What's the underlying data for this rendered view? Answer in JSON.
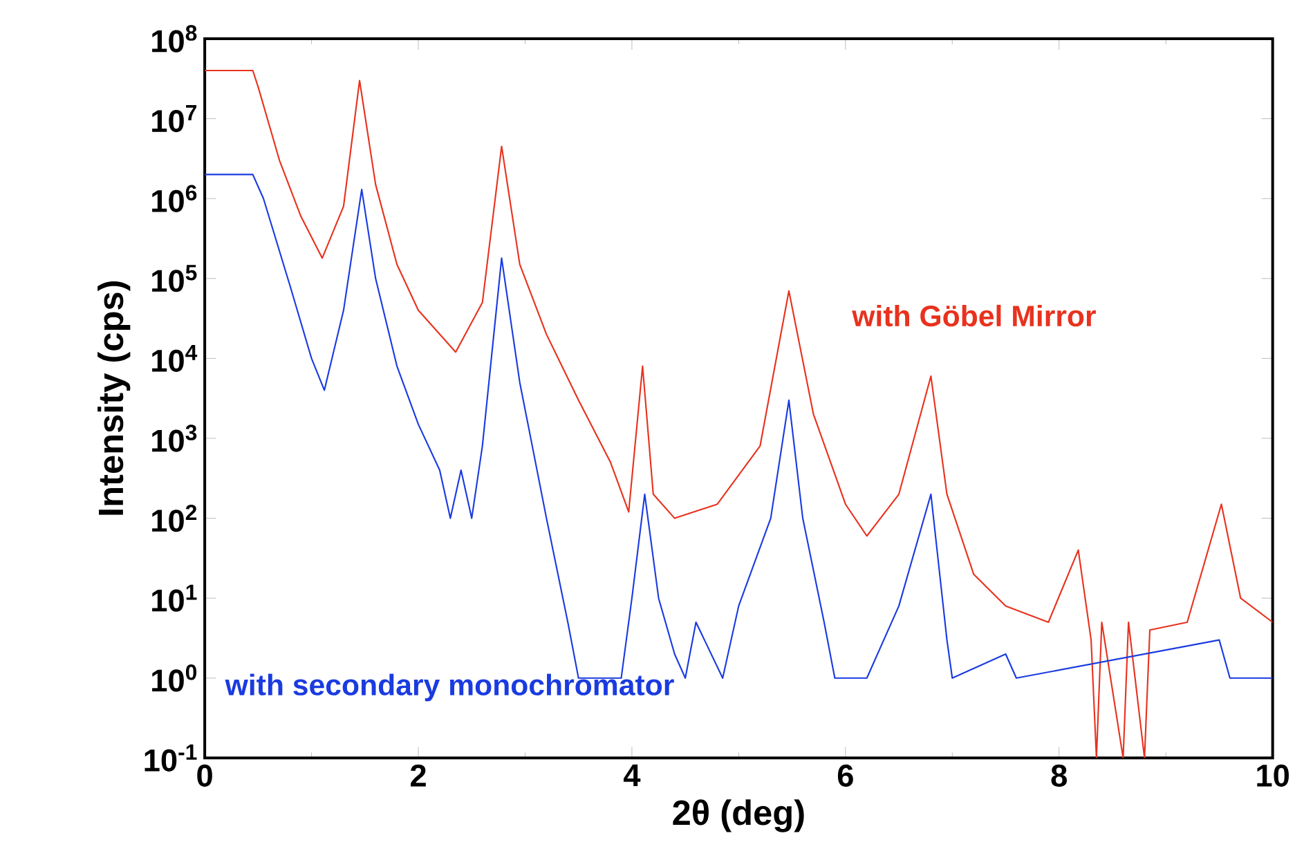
{
  "chart_data": {
    "type": "line",
    "xlabel": "2θ  (deg)",
    "ylabel": "Intensity (cps)",
    "log": "y",
    "grid": false,
    "legend": false,
    "marker": "none",
    "line_style": "solid",
    "xlim": [
      0,
      10
    ],
    "xticks": [
      0,
      2,
      4,
      6,
      8,
      10
    ],
    "ylim": [
      0.1,
      100000000
    ],
    "yticks": [
      {
        "value": 0.1,
        "label": "10$^{-1}$"
      },
      {
        "value": 1,
        "label": "10$^{0}$"
      },
      {
        "value": 10,
        "label": "10$^{1}$"
      },
      {
        "value": 100,
        "label": "10$^{2}$"
      },
      {
        "value": 1000,
        "label": "10$^{3}$"
      },
      {
        "value": 10000,
        "label": "10$^{4}$"
      },
      {
        "value": 100000,
        "label": "10$^{5}$"
      },
      {
        "value": 1000000,
        "label": "10$^{6}$"
      },
      {
        "value": 10000000,
        "label": "10$^{7}$"
      },
      {
        "value": 100000000,
        "label": "10$^{8}$"
      }
    ],
    "series": [
      {
        "name": "with Göbel Mirror",
        "color": "#e8321e",
        "x": [
          0,
          0.45,
          0.5,
          0.7,
          0.9,
          1.1,
          1.3,
          1.45,
          1.6,
          1.8,
          2.0,
          2.35,
          2.6,
          2.78,
          2.95,
          3.2,
          3.5,
          3.8,
          3.97,
          4.1,
          4.2,
          4.4,
          4.8,
          5.2,
          5.47,
          5.7,
          6.0,
          6.2,
          6.5,
          6.8,
          6.95,
          7.2,
          7.5,
          7.9,
          8.18,
          8.3,
          8.35,
          8.4,
          8.6,
          8.65,
          8.8,
          8.85,
          9.2,
          9.52,
          9.7,
          10.0
        ],
        "values": [
          40000000,
          40000000,
          25000000,
          3000000,
          600000,
          180000,
          800000,
          30000000,
          1500000,
          150000,
          40000,
          12000,
          50000,
          4500000,
          150000,
          20000,
          3000,
          500,
          120,
          8000,
          200,
          100,
          150,
          800,
          70000,
          2000,
          150,
          60,
          200,
          6000,
          200,
          20,
          8,
          5,
          40,
          3,
          0.1,
          5,
          0.1,
          5,
          0.1,
          4,
          5,
          150,
          10,
          5
        ]
      },
      {
        "name": "with secondary monochromator",
        "color": "#1a3be0",
        "x": [
          0,
          0.45,
          0.55,
          0.8,
          1.0,
          1.12,
          1.3,
          1.47,
          1.6,
          1.8,
          2.0,
          2.2,
          2.3,
          2.4,
          2.5,
          2.6,
          2.78,
          2.95,
          3.2,
          3.4,
          3.5,
          3.9,
          4.0,
          4.12,
          4.25,
          4.4,
          4.5,
          4.6,
          4.85,
          5.0,
          5.3,
          5.47,
          5.6,
          5.8,
          5.9,
          6.2,
          6.5,
          6.8,
          6.95,
          7.0,
          7.5,
          7.6,
          9.5,
          9.6,
          10.0
        ],
        "values": [
          2000000,
          2000000,
          1000000,
          80000,
          10000,
          4000,
          40000,
          1300000,
          100000,
          8000,
          1500,
          400,
          100,
          400,
          100,
          800,
          180000,
          5000,
          100,
          5,
          1,
          1,
          10,
          200,
          10,
          2,
          1,
          5,
          1,
          8,
          100,
          3000,
          100,
          5,
          1,
          1,
          8,
          200,
          3,
          1,
          2,
          1,
          3,
          1,
          1
        ]
      }
    ]
  }
}
